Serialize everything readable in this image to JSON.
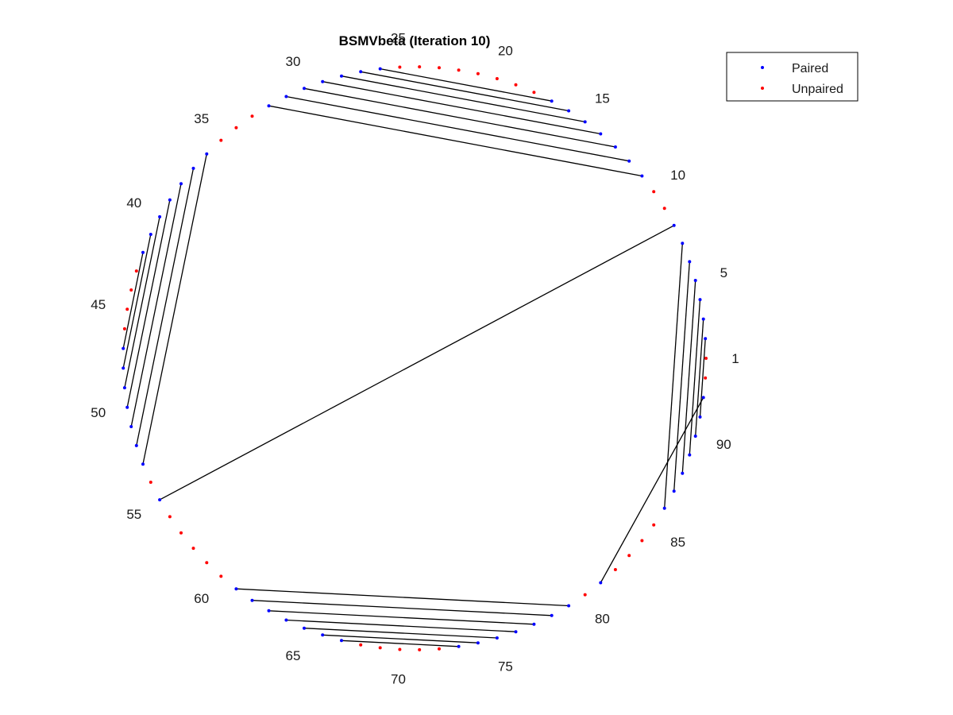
{
  "chart_data": {
    "type": "scatter",
    "title": "BSMVbeta (Iteration 10)",
    "layout": "circular arc diagram",
    "n_positions": 93,
    "numbering_labels": [
      "1",
      "5",
      "10",
      "15",
      "20",
      "25",
      "30",
      "35",
      "40",
      "45",
      "50",
      "55",
      "60",
      "65",
      "70",
      "75",
      "80",
      "85",
      "90"
    ],
    "legend": {
      "position": "top-right",
      "entries": [
        {
          "name": "Paired",
          "color": "#0000ff"
        },
        {
          "name": "Unpaired",
          "color": "#ff0000"
        }
      ]
    },
    "pairs": [
      [
        2,
        91
      ],
      [
        3,
        90
      ],
      [
        4,
        89
      ],
      [
        5,
        88
      ],
      [
        6,
        87
      ],
      [
        7,
        86
      ],
      [
        8,
        55
      ],
      [
        11,
        32
      ],
      [
        12,
        31
      ],
      [
        13,
        30
      ],
      [
        14,
        29
      ],
      [
        15,
        28
      ],
      [
        16,
        27
      ],
      [
        17,
        26
      ],
      [
        36,
        53
      ],
      [
        37,
        52
      ],
      [
        38,
        51
      ],
      [
        39,
        50
      ],
      [
        40,
        49
      ],
      [
        41,
        48
      ],
      [
        42,
        47
      ],
      [
        61,
        79
      ],
      [
        62,
        78
      ],
      [
        63,
        77
      ],
      [
        64,
        76
      ],
      [
        65,
        75
      ],
      [
        66,
        74
      ],
      [
        67,
        73
      ],
      [
        81,
        92
      ]
    ],
    "series": [
      {
        "name": "Paired",
        "color": "#0000ff"
      },
      {
        "name": "Unpaired",
        "color": "#ff0000"
      }
    ],
    "grid": false,
    "axes_visible": false
  }
}
